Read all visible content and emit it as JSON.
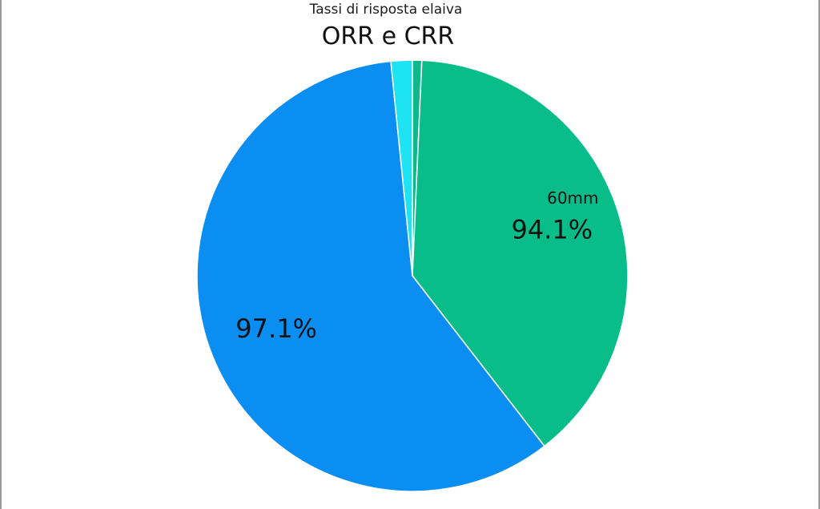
{
  "subtitle": "Tassi di risposta elaiva",
  "title": "ORR e CRR",
  "chart_data": {
    "type": "pie",
    "title": "ORR e CRR",
    "subtitle": "Tassi di risposta elaiva",
    "slices": [
      {
        "value": 0.7,
        "color": "#0fb88a",
        "label": ""
      },
      {
        "value": 38.8,
        "color": "#08bd8a",
        "label": "94.1%",
        "annotation": "60mm"
      },
      {
        "value": 58.9,
        "color": "#0a8ef2",
        "label": "97.1%"
      },
      {
        "value": 1.6,
        "color": "#1de3f2",
        "label": ""
      }
    ],
    "start_angle_deg": 0,
    "direction": "clockwise",
    "legend": "none"
  }
}
